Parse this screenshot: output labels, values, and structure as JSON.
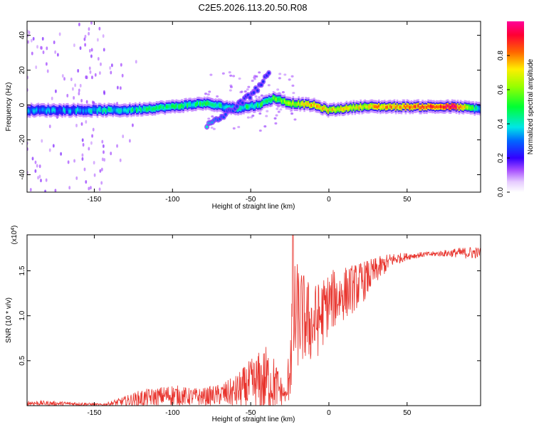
{
  "chart_data": [
    {
      "type": "heatmap",
      "title": "C2E5.2026.113.20.50.R08",
      "xlabel": "Height of straight line (km)",
      "ylabel": "Frequency (Hz)",
      "xlim": [
        -193,
        97
      ],
      "ylim": [
        -50,
        48
      ],
      "xticks": [
        "-150",
        "-100",
        "-50",
        "0",
        "50"
      ],
      "xtick_values": [
        -150,
        -100,
        -50,
        0,
        50
      ],
      "yticks": [
        "-40",
        "-20",
        "0",
        "20",
        "40"
      ],
      "ytick_values": [
        -40,
        -20,
        0,
        20,
        40
      ],
      "colorbar": {
        "label": "Normalized spectral amplitude",
        "range": [
          0,
          1
        ],
        "ticks": [
          "0.0",
          "0.2",
          "0.4",
          "0.6",
          "0.8"
        ],
        "tick_values": [
          0.0,
          0.2,
          0.4,
          0.6,
          0.8
        ]
      },
      "ridge": {
        "description_points": [
          {
            "x": -190,
            "freq": -3,
            "amp": 0.3
          },
          {
            "x": -160,
            "freq": -3,
            "amp": 0.35
          },
          {
            "x": -130,
            "freq": -3,
            "amp": 0.4
          },
          {
            "x": -100,
            "freq": -1,
            "amp": 0.45
          },
          {
            "x": -80,
            "freq": 1,
            "amp": 0.45
          },
          {
            "x": -60,
            "freq": -2,
            "amp": 0.4
          },
          {
            "x": -45,
            "freq": 0,
            "amp": 0.45
          },
          {
            "x": -35,
            "freq": 4,
            "amp": 0.55
          },
          {
            "x": -25,
            "freq": 1,
            "amp": 0.6
          },
          {
            "x": -10,
            "freq": 0,
            "amp": 0.75
          },
          {
            "x": 0,
            "freq": -3,
            "amp": 0.7
          },
          {
            "x": 20,
            "freq": -1,
            "amp": 0.7
          },
          {
            "x": 50,
            "freq": -1,
            "amp": 0.8
          },
          {
            "x": 80,
            "freq": -1,
            "amp": 0.95
          },
          {
            "x": 95,
            "freq": -2,
            "amp": 0.4
          }
        ],
        "secondary_branch": [
          {
            "x": -78,
            "freq": -12,
            "amp": 0.5
          },
          {
            "x": -70,
            "freq": -8,
            "amp": 0.35
          },
          {
            "x": -55,
            "freq": 2,
            "amp": 0.3
          },
          {
            "x": -45,
            "freq": 10,
            "amp": 0.3
          },
          {
            "x": -38,
            "freq": 18,
            "amp": 0.3
          }
        ]
      }
    },
    {
      "type": "line",
      "xlabel": "Height of straight line (km)",
      "ylabel": "SNR (10 * v/v)",
      "yscale_label_base": "(x10",
      "yscale_label_exp": "4",
      "yscale_label_close": ")",
      "xlim": [
        -193,
        97
      ],
      "ylim": [
        0,
        1.9
      ],
      "xticks": [
        "-150",
        "-100",
        "-50",
        "0",
        "50"
      ],
      "xtick_values": [
        -150,
        -100,
        -50,
        0,
        50
      ],
      "yticks": [
        "0.5",
        "1.0",
        "1.5"
      ],
      "ytick_values": [
        0.5,
        1.0,
        1.5
      ],
      "series": [
        {
          "name": "SNR",
          "color": "#e8332c",
          "envelope": {
            "x": [
              -193,
              -160,
              -145,
              -130,
              -120,
              -110,
              -100,
              -90,
              -80,
              -70,
              -60,
              -50,
              -40,
              -35,
              -30,
              -27,
              -25,
              -23,
              -20,
              -15,
              -10,
              -5,
              0,
              10,
              20,
              30,
              40,
              50,
              60,
              70,
              80,
              90,
              97
            ],
            "base": [
              0.03,
              0.02,
              0.01,
              0.05,
              0.08,
              0.1,
              0.12,
              0.1,
              0.1,
              0.12,
              0.15,
              0.22,
              0.28,
              0.25,
              0.15,
              0.1,
              0.5,
              0.9,
              1.0,
              0.95,
              0.9,
              1.0,
              1.15,
              1.25,
              1.35,
              1.5,
              1.62,
              1.66,
              1.68,
              1.69,
              1.7,
              1.7,
              1.7
            ],
            "noise": [
              0.03,
              0.02,
              0.01,
              0.06,
              0.1,
              0.1,
              0.12,
              0.1,
              0.1,
              0.12,
              0.18,
              0.3,
              0.4,
              0.3,
              0.15,
              0.05,
              0.5,
              0.7,
              0.6,
              0.5,
              0.45,
              0.4,
              0.35,
              0.3,
              0.25,
              0.15,
              0.08,
              0.04,
              0.03,
              0.03,
              0.05,
              0.07,
              0.06
            ]
          },
          "peak": {
            "x": -23,
            "y": 1.9
          }
        }
      ]
    }
  ]
}
